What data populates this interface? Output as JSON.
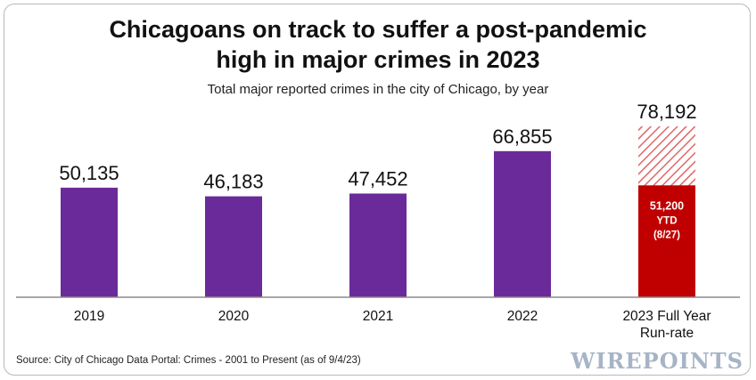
{
  "header": {
    "title_line1": "Chicagoans on track to suffer a post-pandemic",
    "title_line2": "high in major crimes in 2023",
    "subtitle": "Total major reported crimes in the city of Chicago, by year"
  },
  "footer": {
    "source": "Source: City of Chicago Data Portal: Crimes - 2001 to Present (as of 9/4/23)",
    "logo_text": "WIREPOINTS"
  },
  "colors": {
    "bar": "#6b2a99",
    "ytd": "#c00000",
    "runrate_hatch": "#e06666",
    "axis": "#8a8a8a"
  },
  "chart_data": {
    "type": "bar",
    "categories": [
      "2019",
      "2020",
      "2021",
      "2022",
      "2023 Full Year Run-rate"
    ],
    "values": [
      50135,
      46183,
      47452,
      66855,
      78192
    ],
    "value_labels": [
      "50,135",
      "46,183",
      "47,452",
      "66,855",
      "78,192"
    ],
    "ytd": {
      "category": "2023 Full Year Run-rate",
      "value": 51200,
      "label_lines": [
        "51,200",
        "YTD",
        "(8/27)"
      ]
    },
    "ylim": [
      0,
      78192
    ],
    "grid": false,
    "legend": "none"
  }
}
